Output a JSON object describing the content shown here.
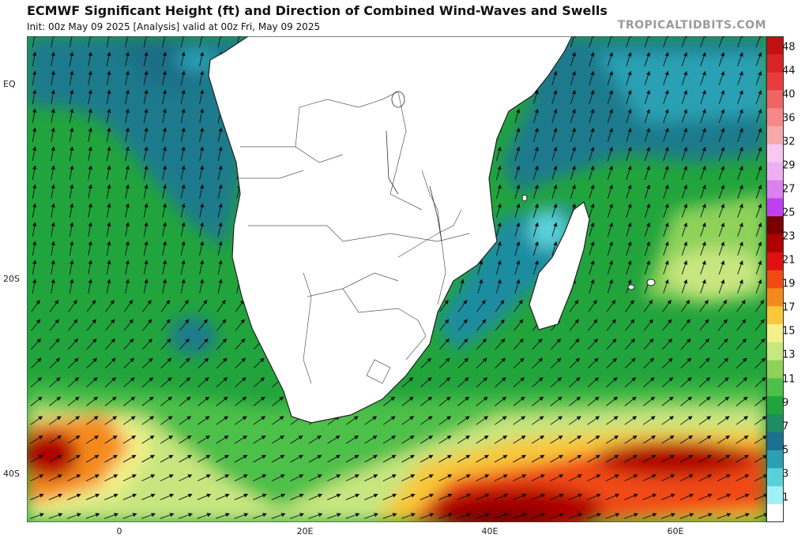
{
  "header": {
    "title": "ECMWF Significant Height (ft) and Direction of Combined Wind-Waves and Swells",
    "subtitle": "Init: 00z May 09 2025   [Analysis]   valid at 00z Fri, May 09 2025",
    "brand": "TROPICALTIDBITS.COM"
  },
  "axes": {
    "lat_labels": [
      "EQ",
      "20S",
      "40S"
    ],
    "lon_labels": [
      "0",
      "20E",
      "40E",
      "60E"
    ]
  },
  "colorbar": {
    "labels": [
      "48",
      "44",
      "40",
      "36",
      "32",
      "29",
      "27",
      "25",
      "23",
      "21",
      "19",
      "17",
      "15",
      "13",
      "11",
      "9",
      "7",
      "5",
      "3",
      "1"
    ],
    "colors": [
      "#c01010",
      "#d82424",
      "#e83c3c",
      "#f06464",
      "#f58888",
      "#f7aaaa",
      "#f6c8f0",
      "#ecb0f2",
      "#dc80f0",
      "#c040f0",
      "#7a0000",
      "#b00000",
      "#e01010",
      "#f04a14",
      "#f58a1c",
      "#f8c83a",
      "#f4f08a",
      "#c8e680",
      "#8ed25a",
      "#4ec04a",
      "#22a43c",
      "#1e8c64",
      "#1a7090",
      "#2aa0b4",
      "#5ad0d8",
      "#a0f0f4",
      "#ffffff"
    ]
  },
  "map_data": {
    "variable": "Significant wave height (ft)",
    "region": "Southern Africa / South Atlantic / Southwest Indian Ocean"
  }
}
